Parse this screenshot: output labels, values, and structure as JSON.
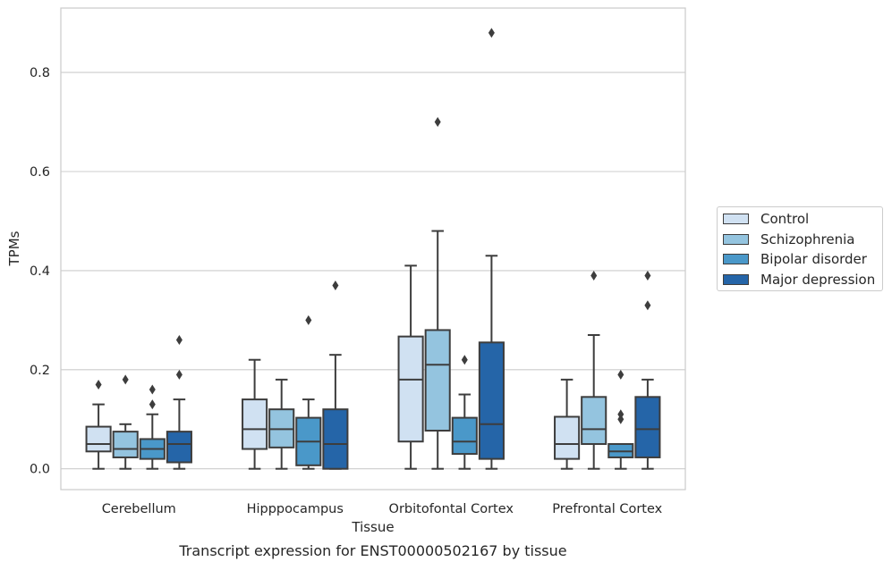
{
  "chart_data": {
    "type": "box",
    "title": "Transcript expression for ENST00000502167 by tissue",
    "xlabel": "Tissue",
    "ylabel": "TPMs",
    "ylim": [
      -0.042,
      0.93
    ],
    "yticks": [
      0.0,
      0.2,
      0.4,
      0.6,
      0.8
    ],
    "ytick_labels": [
      "0.0",
      "0.2",
      "0.4",
      "0.6",
      "0.8"
    ],
    "grid": "horizontal",
    "legend_position": "right",
    "categories": [
      "Cerebellum",
      "Hipppocampus",
      "Orbitofontal Cortex",
      "Prefrontal Cortex"
    ],
    "series": [
      {
        "name": "Control",
        "color": "#d0e1f2",
        "boxes": [
          {
            "whislo": 0.0,
            "q1": 0.035,
            "med": 0.05,
            "q3": 0.085,
            "whishi": 0.13,
            "fliers": [
              0.17
            ]
          },
          {
            "whislo": 0.0,
            "q1": 0.04,
            "med": 0.08,
            "q3": 0.14,
            "whishi": 0.22,
            "fliers": []
          },
          {
            "whislo": 0.0,
            "q1": 0.055,
            "med": 0.18,
            "q3": 0.267,
            "whishi": 0.41,
            "fliers": []
          },
          {
            "whislo": 0.0,
            "q1": 0.02,
            "med": 0.05,
            "q3": 0.105,
            "whishi": 0.18,
            "fliers": []
          }
        ]
      },
      {
        "name": "Schizophrenia",
        "color": "#94c4df",
        "boxes": [
          {
            "whislo": 0.0,
            "q1": 0.023,
            "med": 0.04,
            "q3": 0.075,
            "whishi": 0.09,
            "fliers": [
              0.18
            ]
          },
          {
            "whislo": 0.0,
            "q1": 0.043,
            "med": 0.08,
            "q3": 0.12,
            "whishi": 0.18,
            "fliers": []
          },
          {
            "whislo": 0.0,
            "q1": 0.077,
            "med": 0.21,
            "q3": 0.28,
            "whishi": 0.48,
            "fliers": [
              0.7
            ]
          },
          {
            "whislo": 0.0,
            "q1": 0.05,
            "med": 0.08,
            "q3": 0.145,
            "whishi": 0.27,
            "fliers": [
              0.39
            ]
          }
        ]
      },
      {
        "name": "Bipolar disorder",
        "color": "#4a98c9",
        "boxes": [
          {
            "whislo": 0.0,
            "q1": 0.02,
            "med": 0.04,
            "q3": 0.06,
            "whishi": 0.11,
            "fliers": [
              0.13,
              0.16
            ]
          },
          {
            "whislo": 0.0,
            "q1": 0.007,
            "med": 0.055,
            "q3": 0.103,
            "whishi": 0.14,
            "fliers": [
              0.3
            ]
          },
          {
            "whislo": 0.0,
            "q1": 0.03,
            "med": 0.055,
            "q3": 0.103,
            "whishi": 0.15,
            "fliers": [
              0.22
            ]
          },
          {
            "whislo": 0.0,
            "q1": 0.023,
            "med": 0.035,
            "q3": 0.05,
            "whishi": 0.05,
            "fliers": [
              0.1,
              0.11,
              0.19
            ]
          }
        ]
      },
      {
        "name": "Major depression",
        "color": "#2565a8",
        "boxes": [
          {
            "whislo": 0.0,
            "q1": 0.013,
            "med": 0.05,
            "q3": 0.075,
            "whishi": 0.14,
            "fliers": [
              0.19,
              0.26
            ]
          },
          {
            "whislo": 0.0,
            "q1": 0.0,
            "med": 0.05,
            "q3": 0.12,
            "whishi": 0.23,
            "fliers": [
              0.37
            ]
          },
          {
            "whislo": 0.0,
            "q1": 0.02,
            "med": 0.09,
            "q3": 0.255,
            "whishi": 0.43,
            "fliers": [
              0.88
            ]
          },
          {
            "whislo": 0.0,
            "q1": 0.023,
            "med": 0.08,
            "q3": 0.145,
            "whishi": 0.18,
            "fliers": [
              0.33,
              0.39
            ]
          }
        ]
      }
    ]
  }
}
